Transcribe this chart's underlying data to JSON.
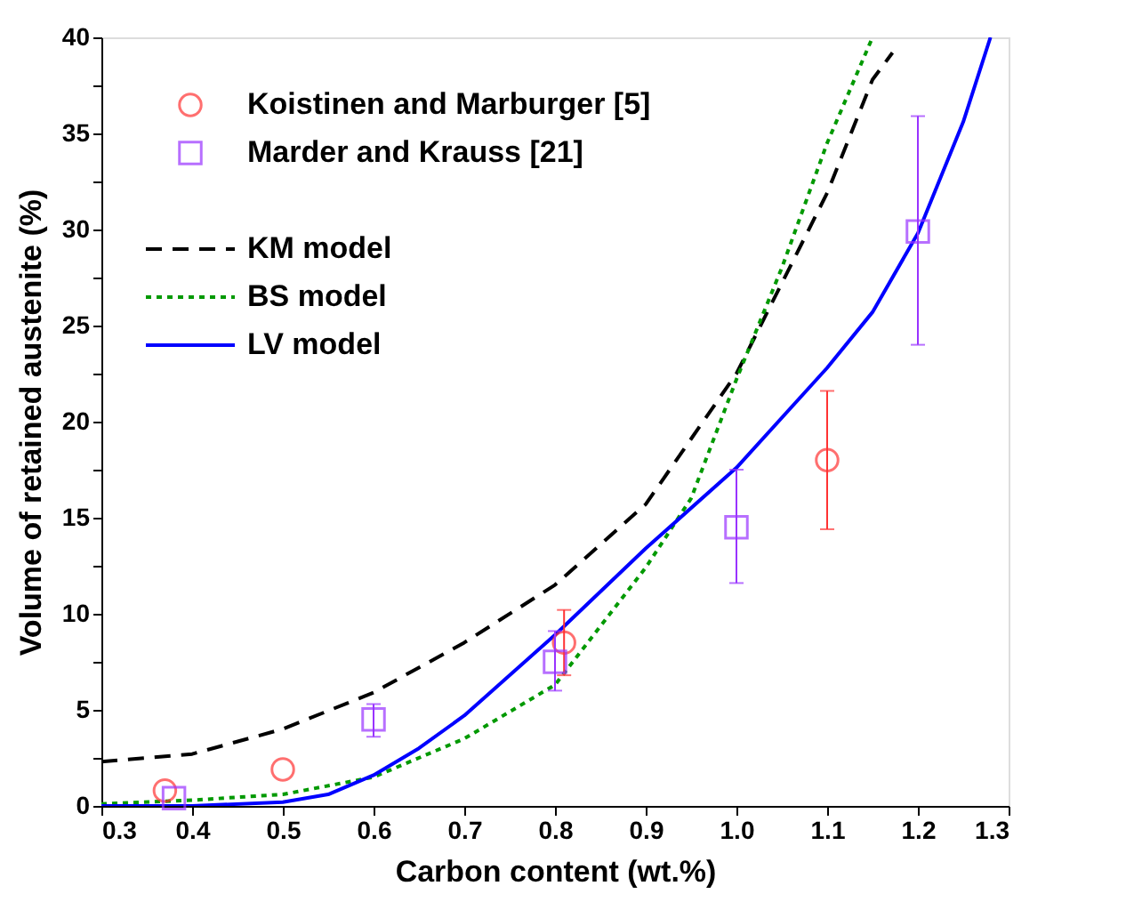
{
  "chart_data": {
    "type": "scatter",
    "xlabel": "Carbon content (wt.%)",
    "ylabel": "Volume of retained austenite (%)",
    "xlim": [
      0.3,
      1.3
    ],
    "xticks": [
      0.3,
      0.4,
      0.5,
      0.6,
      0.7,
      0.8,
      0.9,
      {
        "value": 1.0,
        "label": "1.0"
      },
      1.1,
      1.2,
      1.3
    ],
    "ylim": [
      0,
      40
    ],
    "yticks": [
      0,
      {
        "value": 2.5,
        "label": null
      },
      5,
      {
        "value": 7.5,
        "label": null
      },
      10,
      {
        "value": 12.5,
        "label": null
      },
      15,
      {
        "value": 17.5,
        "label": null
      },
      20,
      {
        "value": 22.5,
        "label": null
      },
      25,
      {
        "value": 27.5,
        "label": null
      },
      30,
      {
        "value": 32.5,
        "label": null
      },
      35,
      {
        "value": 37.5,
        "label": null
      },
      40
    ],
    "grid": false,
    "legend": "top left",
    "series": [
      {
        "name": "Koistinen and Marburger [5]",
        "marker": "circle",
        "color": "#ff3333",
        "x": [
          0.37,
          0.5,
          0.81,
          1.1
        ],
        "values": [
          0.8,
          1.9,
          8.5,
          18.0
        ],
        "errors": [
          null,
          null,
          [
            6.8,
            10.2
          ],
          [
            14.4,
            21.6
          ]
        ]
      },
      {
        "name": "Marder and Krauss [21]",
        "marker": "square",
        "color": "#9933ff",
        "x": [
          0.38,
          0.6,
          0.8,
          1.0,
          1.2
        ],
        "values": [
          0.4,
          4.5,
          7.5,
          14.5,
          29.9
        ],
        "errors": [
          null,
          [
            3.6,
            5.3
          ],
          [
            6.0,
            9.1
          ],
          [
            11.6,
            17.5
          ],
          [
            24.0,
            35.9
          ]
        ]
      },
      {
        "name": "KM model",
        "type": "line",
        "line_style": "dashed",
        "color": "#000000",
        "x": [
          0.3,
          0.4,
          0.5,
          0.6,
          0.7,
          0.8,
          0.9,
          1.0,
          1.1,
          1.15,
          1.172
        ],
        "values": [
          2.3,
          2.7,
          4.0,
          5.9,
          8.5,
          11.5,
          15.7,
          22.5,
          31.9,
          37.8,
          39.2
        ]
      },
      {
        "name": "BS model",
        "type": "line",
        "line_style": "dotted",
        "color": "#009900",
        "x": [
          0.3,
          0.4,
          0.5,
          0.6,
          0.7,
          0.8,
          0.9,
          0.95,
          1.0,
          1.05,
          1.1,
          1.15
        ],
        "values": [
          0.1,
          0.3,
          0.6,
          1.5,
          3.5,
          6.3,
          12.4,
          16.0,
          22.2,
          28.0,
          34.5,
          40.0
        ]
      },
      {
        "name": "LV model",
        "type": "line",
        "line_style": "solid",
        "color": "#0000ff",
        "x": [
          0.3,
          0.4,
          0.5,
          0.55,
          0.6,
          0.65,
          0.7,
          0.8,
          0.9,
          1.0,
          1.1,
          1.15,
          1.2,
          1.25,
          1.28
        ],
        "values": [
          0.0,
          0.0,
          0.2,
          0.6,
          1.6,
          3.0,
          4.7,
          8.9,
          13.4,
          17.6,
          22.8,
          25.7,
          29.8,
          35.6,
          40.0
        ]
      }
    ]
  }
}
